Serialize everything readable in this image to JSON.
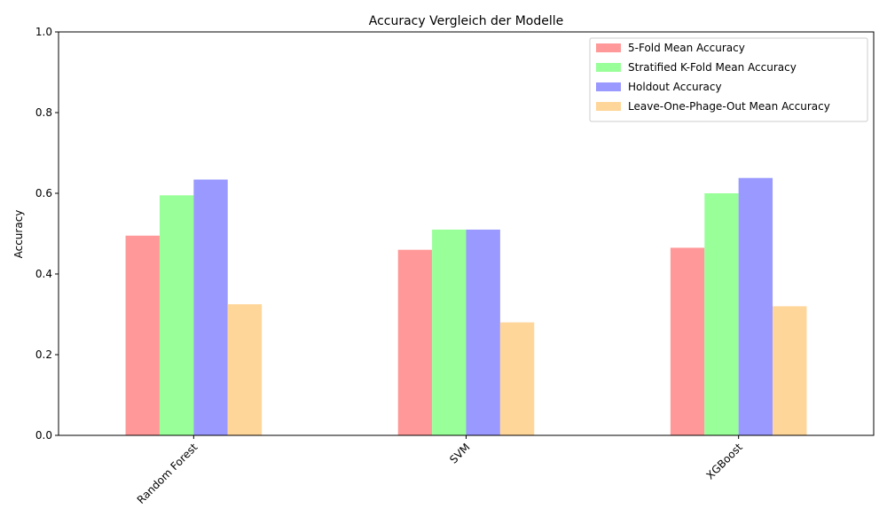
{
  "chart_data": {
    "type": "bar",
    "title": "Accuracy Vergleich der Modelle",
    "xlabel": "",
    "ylabel": "Accuracy",
    "categories": [
      "Random Forest",
      "SVM",
      "XGBoost"
    ],
    "ylim": [
      0,
      1.0
    ],
    "yticks": [
      "0.0",
      "0.2",
      "0.4",
      "0.6",
      "0.8",
      "1.0"
    ],
    "grid": false,
    "legend_position": "top-right",
    "series": [
      {
        "name": "5-Fold Mean Accuracy",
        "color": "#ff9999",
        "values": [
          0.495,
          0.46,
          0.465
        ]
      },
      {
        "name": "Stratified K-Fold Mean Accuracy",
        "color": "#99ff99",
        "values": [
          0.595,
          0.51,
          0.6
        ]
      },
      {
        "name": "Holdout Accuracy",
        "color": "#9999ff",
        "values": [
          0.634,
          0.51,
          0.638
        ]
      },
      {
        "name": "Leave-One-Phage-Out Mean Accuracy",
        "color": "#ffd699",
        "values": [
          0.325,
          0.28,
          0.32
        ]
      }
    ]
  }
}
